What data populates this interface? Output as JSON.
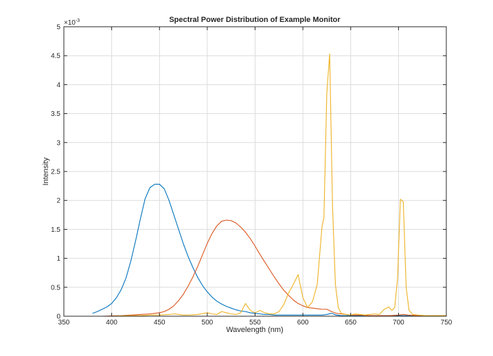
{
  "chart_data": {
    "type": "line",
    "title": "Spectral Power Distribution of Example Monitor",
    "xlabel": "Wavelength (nm)",
    "ylabel": "Intensity",
    "xlim": [
      350,
      750
    ],
    "ylim": [
      0,
      0.005
    ],
    "grid": true,
    "legend": "none",
    "y_exponent_base": "×10",
    "y_exponent_power": "-3",
    "x_ticks": [
      350,
      400,
      450,
      500,
      550,
      600,
      650,
      700,
      750
    ],
    "x_tick_labels": [
      "350",
      "400",
      "450",
      "500",
      "550",
      "600",
      "650",
      "700",
      "750"
    ],
    "y_ticks": [
      0,
      0.0005,
      0.001,
      0.0015,
      0.002,
      0.0025,
      0.003,
      0.0035,
      0.004,
      0.0045,
      0.005
    ],
    "y_tick_labels": [
      "0",
      "0.5",
      "1",
      "1.5",
      "2",
      "2.5",
      "3",
      "3.5",
      "4",
      "4.5",
      "5"
    ],
    "series": [
      {
        "color": "#0072bd",
        "x": [
          380,
          385,
          390,
          395,
          400,
          405,
          410,
          415,
          420,
          425,
          430,
          435,
          440,
          445,
          450,
          455,
          460,
          465,
          470,
          475,
          480,
          485,
          490,
          495,
          500,
          505,
          510,
          515,
          520,
          525,
          530,
          535,
          540,
          545,
          550,
          555,
          560,
          565,
          570,
          575,
          580,
          585,
          590,
          595,
          600,
          605,
          610,
          615,
          620,
          625,
          630,
          635,
          640,
          645,
          650,
          660,
          670,
          680,
          690,
          700,
          710,
          720,
          730,
          740,
          750
        ],
        "y": [
          5e-05,
          8e-05,
          0.00012,
          0.00016,
          0.00022,
          0.00032,
          0.00046,
          0.00066,
          0.00095,
          0.0013,
          0.00168,
          0.00203,
          0.00222,
          0.00228,
          0.00228,
          0.0022,
          0.002,
          0.00175,
          0.0015,
          0.00125,
          0.00103,
          0.00084,
          0.00067,
          0.00053,
          0.00042,
          0.00033,
          0.00026,
          0.00021,
          0.00017,
          0.00014,
          0.00011,
          9e-05,
          8e-05,
          6e-05,
          5e-05,
          4e-05,
          3e-05,
          3e-05,
          2e-05,
          2e-05,
          2e-05,
          2e-05,
          2e-05,
          2e-05,
          2e-05,
          2e-05,
          2e-05,
          2e-05,
          2e-05,
          3e-05,
          5e-05,
          2e-05,
          1e-05,
          1e-05,
          1e-05,
          1e-05,
          1e-05,
          1e-05,
          1e-05,
          1e-05,
          1e-05,
          1e-05,
          1e-05,
          1e-05,
          1e-05
        ]
      },
      {
        "color": "#d95319",
        "x": [
          380,
          390,
          400,
          410,
          420,
          430,
          440,
          445,
          450,
          455,
          460,
          465,
          470,
          475,
          480,
          485,
          490,
          495,
          500,
          505,
          510,
          515,
          520,
          525,
          530,
          535,
          540,
          545,
          550,
          555,
          560,
          565,
          570,
          575,
          580,
          585,
          590,
          595,
          600,
          605,
          610,
          615,
          620,
          625,
          630,
          635,
          640,
          645,
          650,
          660,
          670,
          680,
          690,
          700,
          705,
          710,
          720,
          730,
          740,
          750
        ],
        "y": [
          0,
          0,
          5e-06,
          1e-05,
          2e-05,
          3e-05,
          4e-05,
          5e-05,
          6e-05,
          8e-05,
          0.00012,
          0.00018,
          0.00027,
          0.00038,
          0.00052,
          0.00068,
          0.00086,
          0.00106,
          0.00126,
          0.00143,
          0.00156,
          0.00164,
          0.00166,
          0.00165,
          0.00161,
          0.00154,
          0.00145,
          0.00134,
          0.00121,
          0.00107,
          0.00094,
          0.00081,
          0.00068,
          0.00056,
          0.00045,
          0.00036,
          0.00028,
          0.00022,
          0.00018,
          0.00015,
          0.00014,
          0.00013,
          0.00012,
          0.00012,
          8e-05,
          5e-05,
          4e-05,
          3e-05,
          2e-05,
          2e-05,
          1e-05,
          1e-05,
          1e-05,
          2e-05,
          3e-05,
          2e-05,
          1e-05,
          1e-05,
          1e-05,
          1e-05
        ]
      },
      {
        "color": "#edb120",
        "x": [
          380,
          390,
          400,
          410,
          420,
          430,
          440,
          450,
          460,
          465,
          470,
          475,
          480,
          490,
          500,
          505,
          510,
          515,
          520,
          525,
          530,
          535,
          540,
          545,
          550,
          555,
          560,
          565,
          570,
          575,
          580,
          585,
          590,
          595,
          600,
          605,
          610,
          615,
          620,
          622,
          625,
          628,
          631,
          634,
          637,
          640,
          645,
          650,
          655,
          660,
          665,
          670,
          675,
          680,
          685,
          690,
          693,
          696,
          699,
          702,
          705,
          708,
          711,
          715,
          720,
          730,
          740,
          750
        ],
        "y": [
          0,
          0,
          0,
          5e-06,
          1e-05,
          1e-05,
          2e-05,
          2e-05,
          3e-05,
          4e-05,
          3e-05,
          2e-05,
          2e-05,
          3e-05,
          6e-05,
          4e-05,
          3e-05,
          8e-05,
          6e-05,
          4e-05,
          3e-05,
          6e-05,
          0.00022,
          0.0001,
          6e-05,
          0.0001,
          6e-05,
          4e-05,
          4e-05,
          8e-05,
          0.0002,
          0.0004,
          0.00055,
          0.00072,
          0.00032,
          0.00015,
          0.00025,
          0.00055,
          0.00155,
          0.0017,
          0.00385,
          0.00453,
          0.0019,
          0.00055,
          0.00015,
          5e-05,
          3e-05,
          2e-05,
          4e-05,
          3e-05,
          2e-05,
          3e-05,
          4e-05,
          3e-05,
          0.00012,
          0.00016,
          0.0001,
          0.00015,
          0.00065,
          0.00202,
          0.00198,
          0.0005,
          0.0001,
          3e-05,
          2e-05,
          1e-05,
          1e-05,
          1e-05
        ]
      }
    ]
  }
}
